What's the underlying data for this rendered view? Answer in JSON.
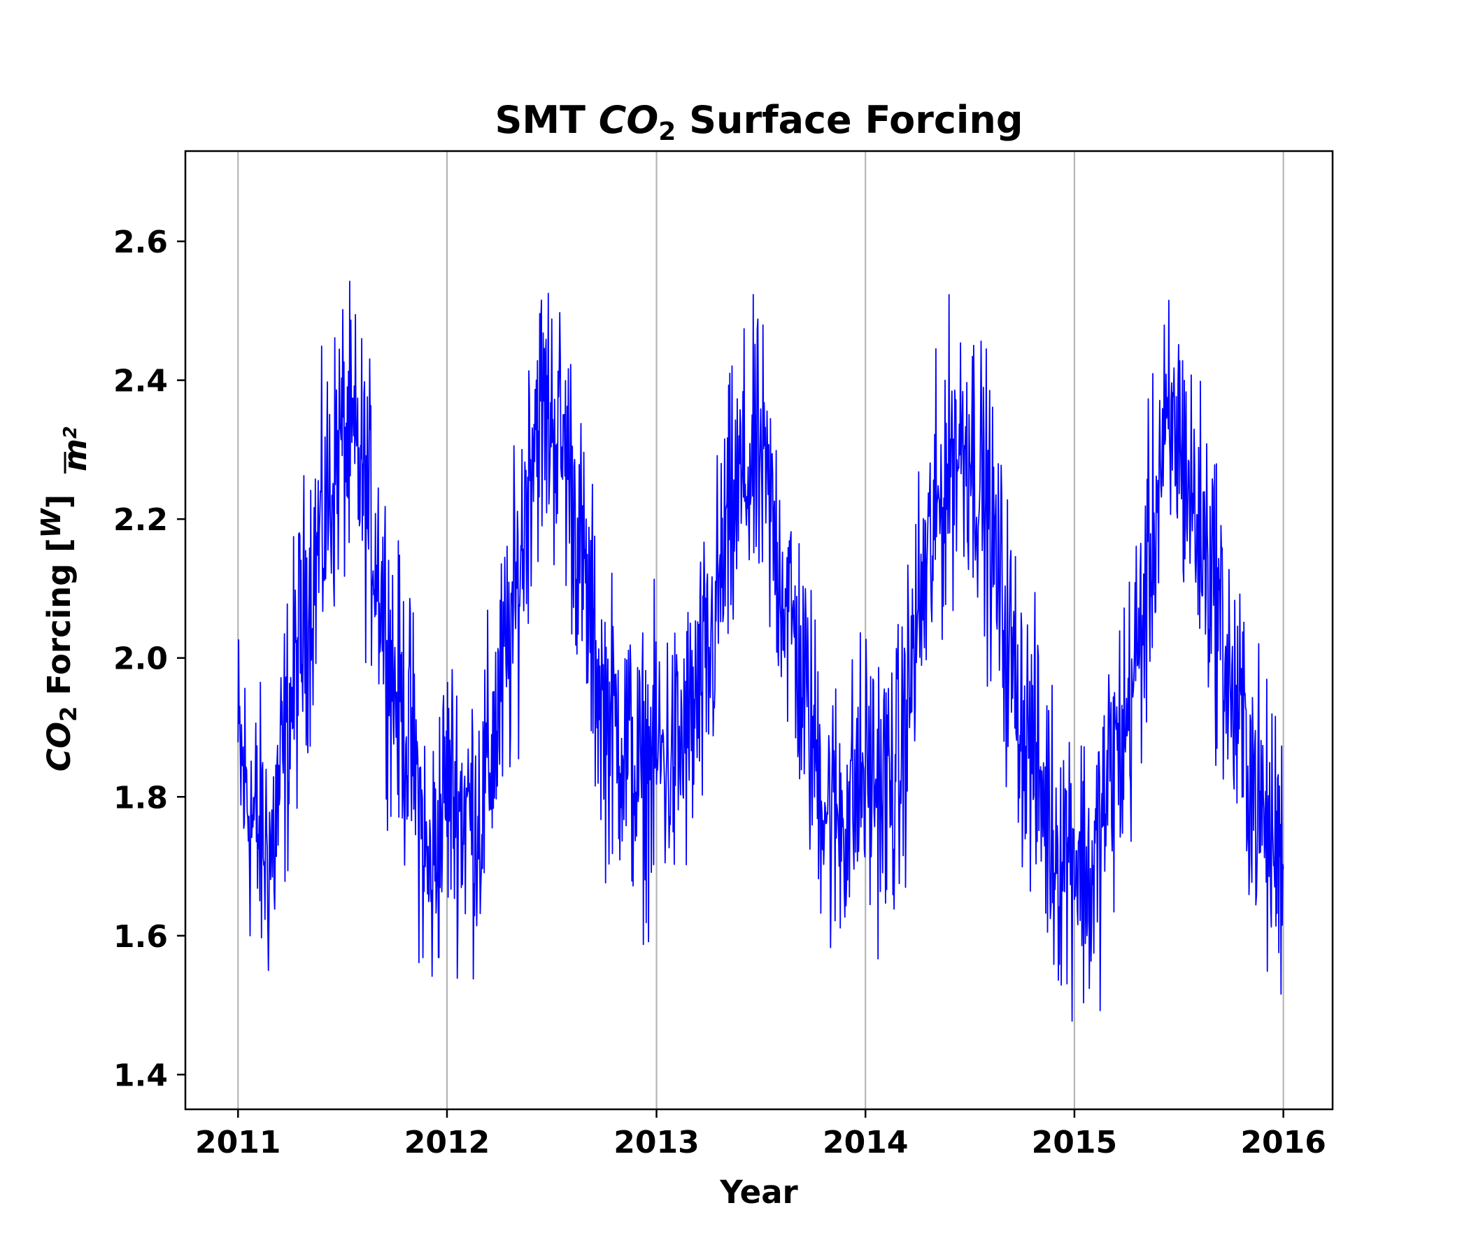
{
  "chart_data": {
    "type": "line",
    "title": {
      "prefix": "SMT ",
      "chem": "CO",
      "sub": "2",
      "suffix": " Surface Forcing"
    },
    "xlabel": "Year",
    "ylabel": {
      "chem": "CO",
      "sub": "2",
      "text": " Forcing [",
      "num": "W",
      "den": "m",
      "den_sup": "2",
      "close": "]"
    },
    "x_ticks": [
      "2011",
      "2012",
      "2013",
      "2014",
      "2015",
      "2016"
    ],
    "y_ticks": [
      "1.4",
      "1.6",
      "1.8",
      "2.0",
      "2.2",
      "2.4",
      "2.6"
    ],
    "xlim": [
      "2010-10-01",
      "2016-03-27"
    ],
    "ylim": [
      1.35,
      2.73
    ],
    "grid": "x",
    "series": [
      {
        "color": "#0000ff",
        "x": [
          "2011-01-01",
          "2011-02-01",
          "2011-03-01",
          "2011-04-01",
          "2011-05-01",
          "2011-06-01",
          "2011-07-01",
          "2011-08-01",
          "2011-09-01",
          "2011-10-01",
          "2011-11-01",
          "2011-12-01",
          "2012-01-01",
          "2012-02-01",
          "2012-03-01",
          "2012-04-01",
          "2012-05-01",
          "2012-06-01",
          "2012-07-01",
          "2012-08-01",
          "2012-09-01",
          "2012-10-01",
          "2012-11-01",
          "2012-12-01",
          "2013-01-01",
          "2013-02-01",
          "2013-03-01",
          "2013-04-01",
          "2013-05-01",
          "2013-06-01",
          "2013-07-01",
          "2013-08-01",
          "2013-09-01",
          "2013-10-01",
          "2013-11-01",
          "2013-12-01",
          "2014-01-01",
          "2014-02-01",
          "2014-03-01",
          "2014-04-01",
          "2014-05-01",
          "2014-06-01",
          "2014-07-01",
          "2014-08-01",
          "2014-09-01",
          "2014-10-01",
          "2014-11-01",
          "2014-12-01",
          "2015-01-01",
          "2015-02-01",
          "2015-03-01",
          "2015-04-01",
          "2015-05-01",
          "2015-06-01",
          "2015-07-01",
          "2015-08-01",
          "2015-09-01",
          "2015-10-01",
          "2015-11-01",
          "2015-12-01",
          "2016-01-01"
        ],
        "y": [
          1.86,
          1.75,
          1.72,
          1.92,
          2.08,
          2.2,
          2.32,
          2.28,
          2.15,
          1.96,
          1.87,
          1.67,
          1.82,
          1.78,
          1.78,
          1.93,
          2.08,
          2.35,
          2.35,
          2.28,
          2.08,
          1.92,
          1.89,
          1.82,
          1.86,
          1.85,
          1.9,
          1.98,
          2.16,
          2.26,
          2.28,
          2.15,
          2.02,
          1.88,
          1.77,
          1.78,
          1.84,
          1.81,
          1.83,
          2.05,
          2.18,
          2.3,
          2.32,
          2.22,
          2.05,
          1.92,
          1.82,
          1.73,
          1.73,
          1.67,
          1.82,
          1.9,
          2.06,
          2.28,
          2.33,
          2.2,
          2.12,
          1.95,
          1.86,
          1.75,
          1.72
        ]
      }
    ]
  }
}
